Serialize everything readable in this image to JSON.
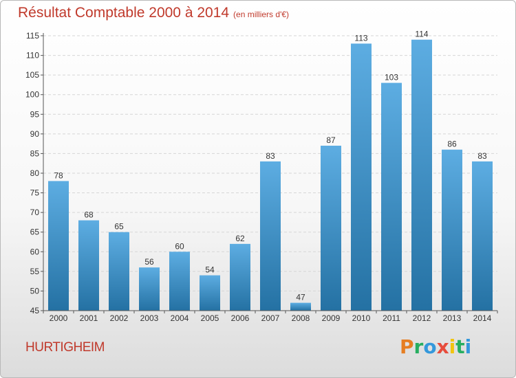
{
  "title": "Résultat Comptable 2000 à 2014",
  "unit_note": "(en milliers d'€)",
  "commune": "HURTIGHEIM",
  "logo_text": "Proxiti",
  "colors": {
    "title": "#c0392b",
    "bar_light": "#5dade2",
    "bar_dark": "#2471a3",
    "logo": [
      "#e67e22",
      "#27ae60",
      "#3498db",
      "#e74c3c",
      "#f1c40f",
      "#27ae60",
      "#3498db"
    ]
  },
  "chart_data": {
    "type": "bar",
    "categories": [
      "2000",
      "2001",
      "2002",
      "2003",
      "2004",
      "2005",
      "2006",
      "2007",
      "2008",
      "2009",
      "2010",
      "2011",
      "2012",
      "2013",
      "2014"
    ],
    "values": [
      78,
      68,
      65,
      56,
      60,
      54,
      62,
      83,
      47,
      87,
      113,
      103,
      114,
      86,
      83
    ],
    "ylim": [
      45,
      115
    ],
    "yticks": [
      45,
      50,
      55,
      60,
      65,
      70,
      75,
      80,
      85,
      90,
      95,
      100,
      105,
      110,
      115
    ],
    "grid": true,
    "data_labels": true
  }
}
